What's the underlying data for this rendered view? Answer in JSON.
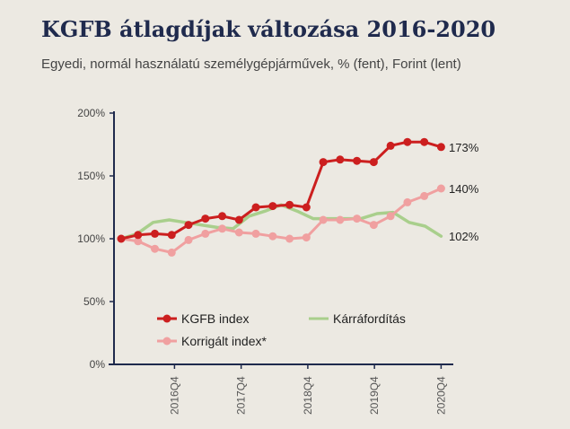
{
  "header": {
    "title": "KGFB átlagdíjak változása 2016-2020",
    "subtitle": "Egyedi, normál használatú személygépjárművek, % (fent), Forint (lent)"
  },
  "colors": {
    "kgfb": "#cc1f1f",
    "karraforditas": "#a9cf8c",
    "korrigalt": "#f0a0a0",
    "axis": "#1f2a4d"
  },
  "chart_data": {
    "type": "line",
    "title": "KGFB átlagdíjak változása 2016-2020",
    "subtitle": "Egyedi, normál használatú személygépjárművek, % (fent), Forint (lent)",
    "ylim": [
      0,
      200
    ],
    "y_ticks": [
      "0%",
      "50%",
      "100%",
      "150%",
      "200%"
    ],
    "y_tick_values": [
      0,
      50,
      100,
      150,
      200
    ],
    "x_tick_labels": [
      "2016Q4",
      "2017Q4",
      "2018Q4",
      "2019Q4",
      "2020Q4"
    ],
    "x_tick_indices": [
      4,
      9,
      14,
      19,
      24
    ],
    "x_count": 25,
    "legend": {
      "placement": "bottom-inside",
      "entries": [
        "KGFB index",
        "Kárráfordítás",
        "Korrigált index*"
      ]
    },
    "series": [
      {
        "name": "KGFB index",
        "color_key": "kgfb",
        "markers": true,
        "end_label": "173%",
        "values": [
          100,
          103,
          104,
          103,
          111,
          116,
          118,
          115,
          125,
          126,
          127,
          125,
          161,
          163,
          162,
          161,
          174,
          177,
          177,
          173
        ]
      },
      {
        "name": "Kárráfordítás",
        "color_key": "karraforditas",
        "markers": false,
        "end_label": "102%",
        "values": [
          100,
          104,
          113,
          115,
          113,
          111,
          109,
          108,
          118,
          122,
          127,
          122,
          116,
          116,
          116,
          116,
          120,
          121,
          113,
          110,
          102
        ]
      },
      {
        "name": "Korrigált index*",
        "color_key": "korrigalt",
        "markers": true,
        "end_label": "140%",
        "values": [
          100,
          98,
          92,
          89,
          99,
          104,
          108,
          105,
          104,
          102,
          100,
          101,
          115,
          115,
          116,
          111,
          118,
          129,
          134,
          140
        ]
      }
    ]
  }
}
